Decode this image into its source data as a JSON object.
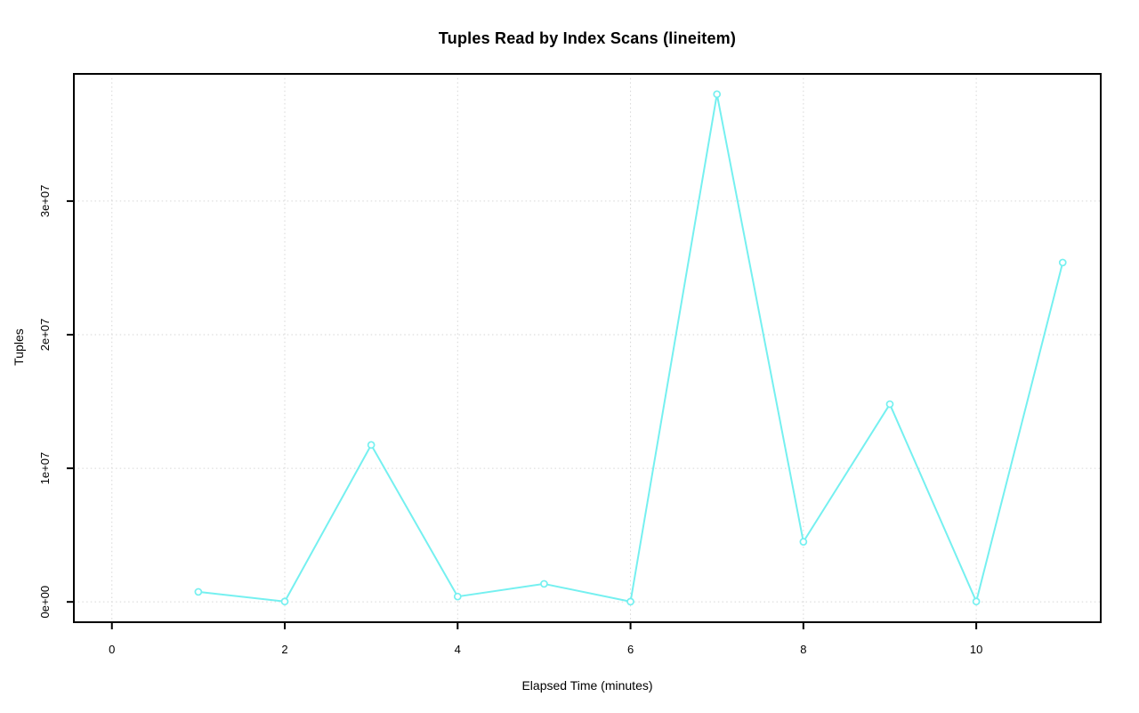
{
  "chart_data": {
    "type": "line",
    "title": "Tuples Read by Index Scans (lineitem)",
    "xlabel": "Elapsed Time (minutes)",
    "ylabel": "Tuples",
    "x": [
      1,
      2,
      3,
      4,
      5,
      6,
      7,
      8,
      9,
      10,
      11
    ],
    "values": [
      750000,
      30000,
      11750000,
      400000,
      1350000,
      20000,
      38000000,
      4500000,
      14800000,
      30000,
      25400000
    ],
    "x_ticks": [
      0,
      2,
      4,
      6,
      8,
      10
    ],
    "x_tick_labels": [
      "0",
      "2",
      "4",
      "6",
      "8",
      "10"
    ],
    "y_ticks": [
      0,
      10000000,
      20000000,
      30000000
    ],
    "y_tick_labels": [
      "0e+00",
      "1e+07",
      "2e+07",
      "3e+07"
    ],
    "xlim": [
      -0.44,
      11.44
    ],
    "ylim": [
      -1520000,
      39520000
    ],
    "grid": true,
    "marker": "open-circle",
    "legend": null,
    "colors": {
      "line": "#75F0F0",
      "grid": "#D6D6D6",
      "axis": "#000000",
      "text": "#000000",
      "background": "#FFFFFF"
    }
  }
}
